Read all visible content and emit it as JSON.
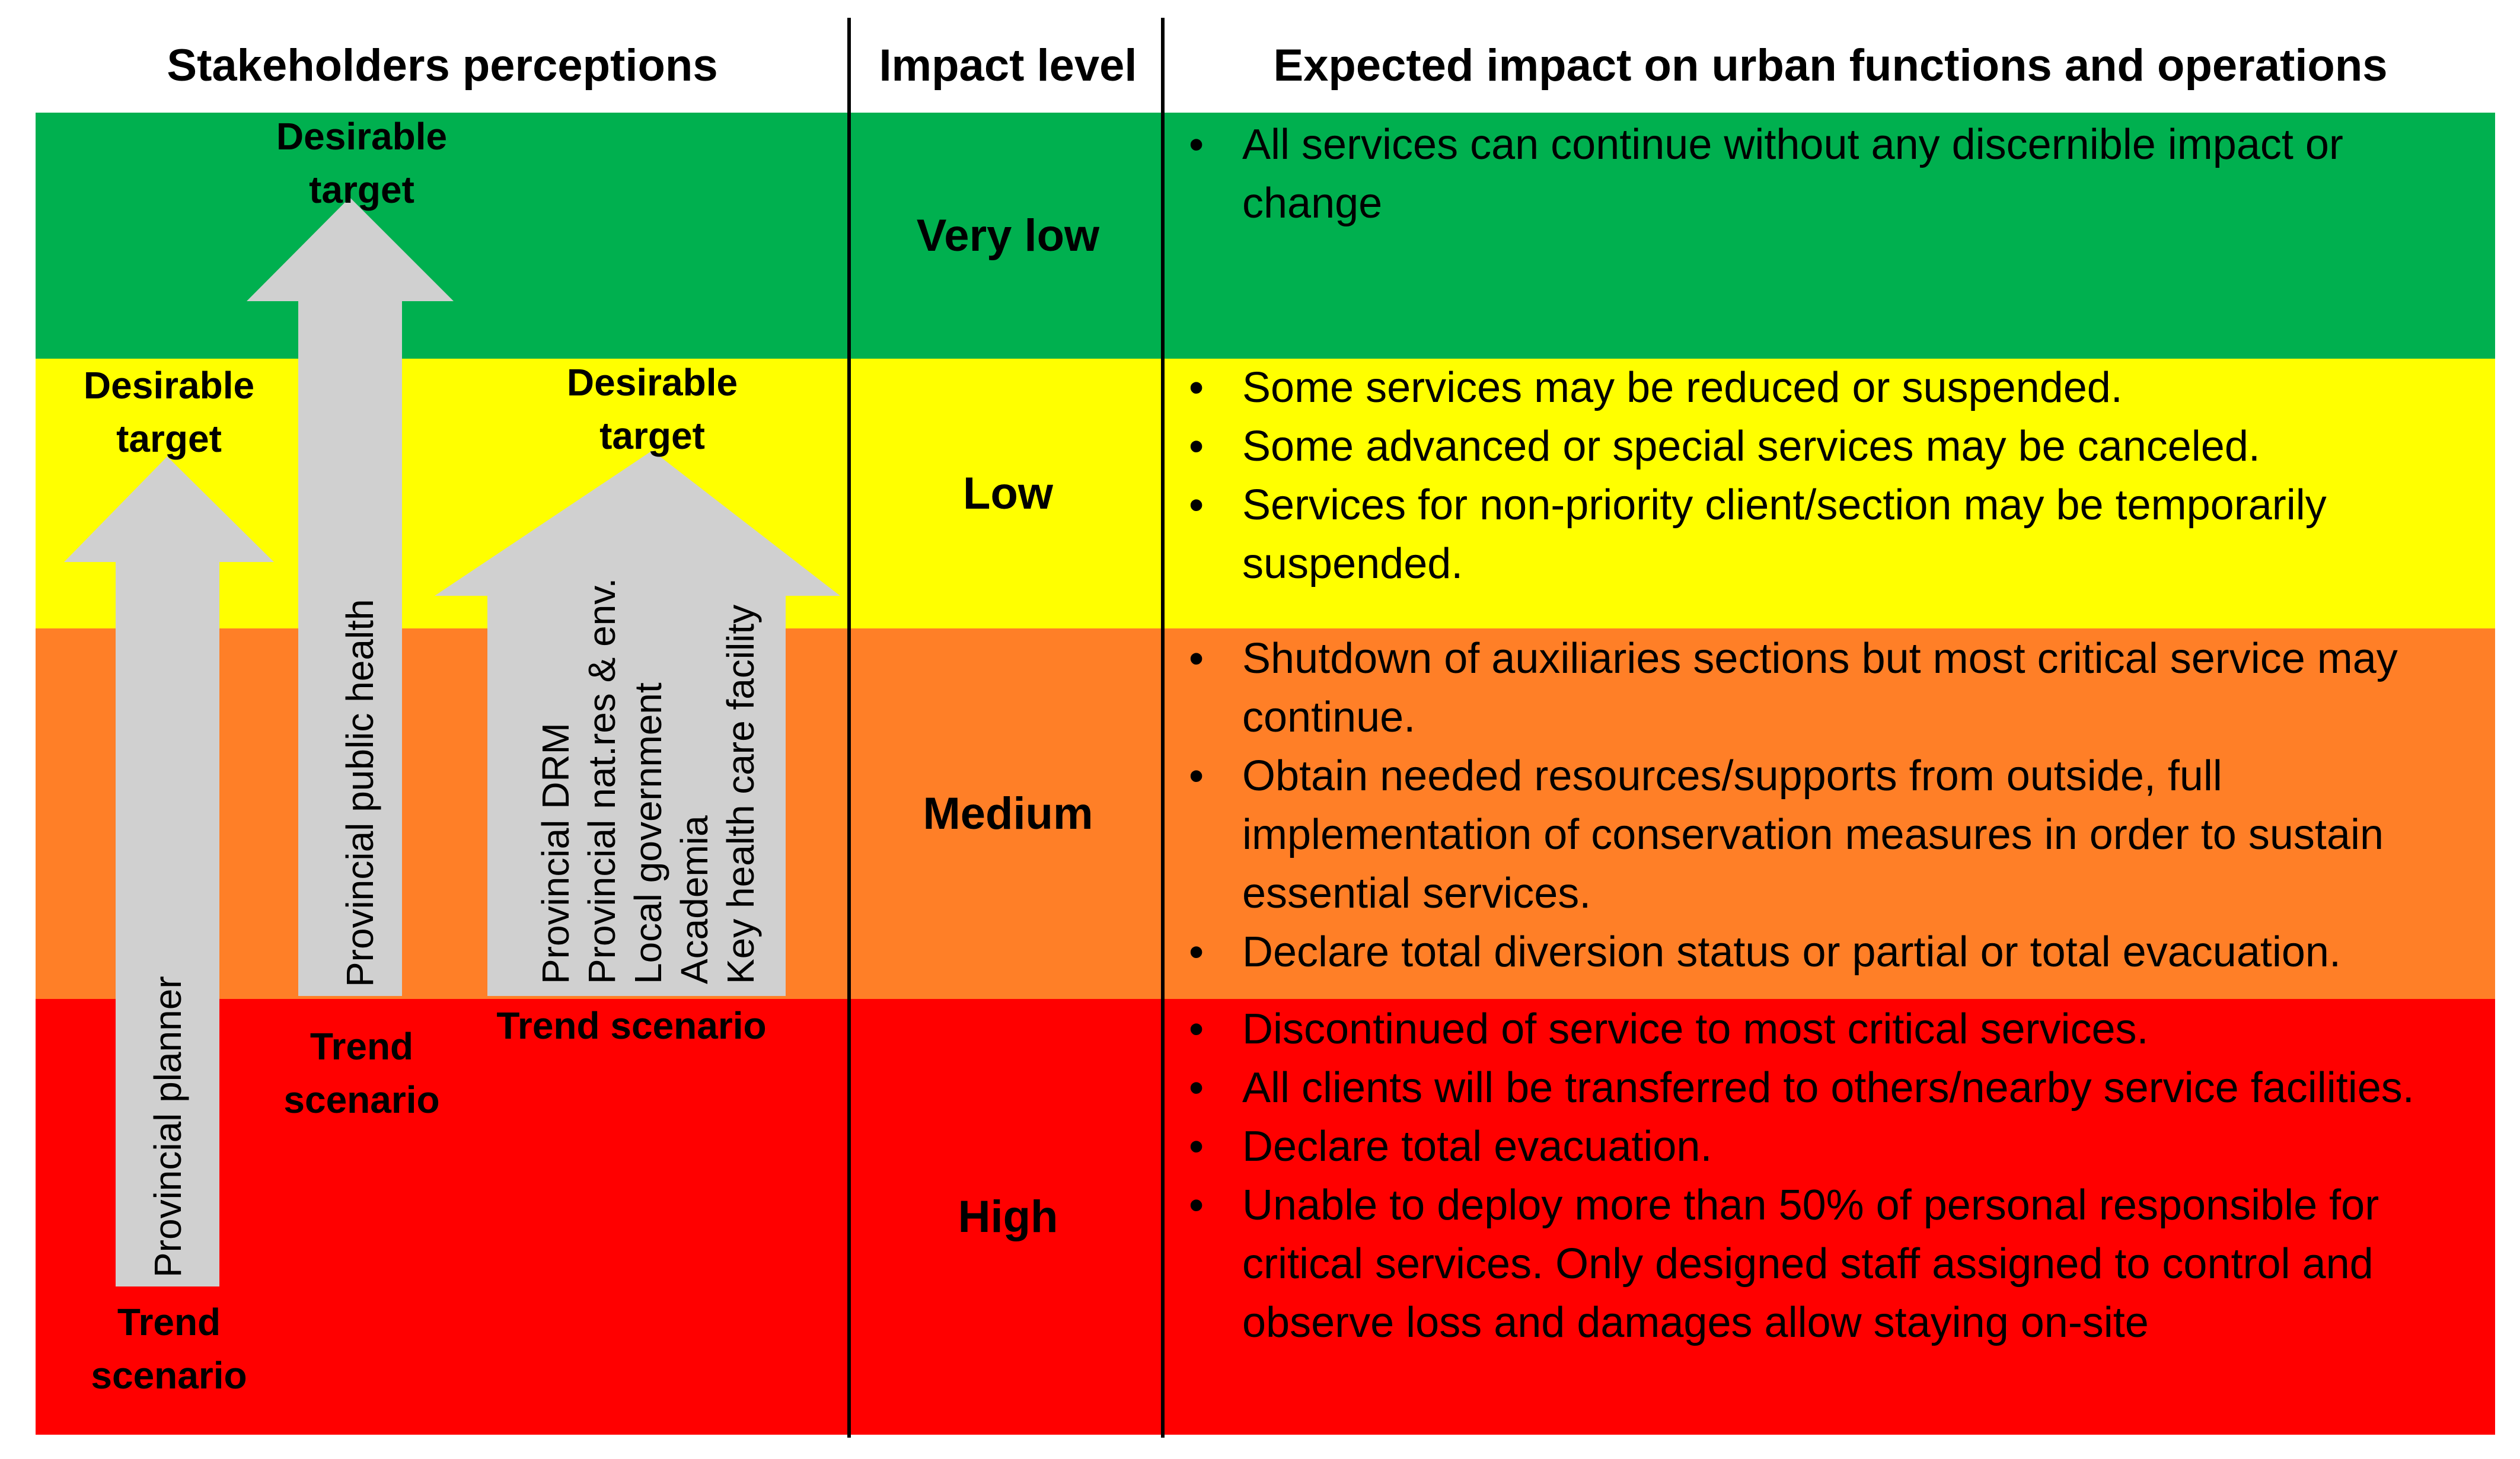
{
  "headers": {
    "stakeholders": "Stakeholders perceptions",
    "impact_level": "Impact level",
    "expected_impact": "Expected impact on urban functions and operations"
  },
  "colors": {
    "very_low": "#00b04f",
    "low": "#ffff00",
    "medium": "#ff7f27",
    "high": "#ff0000",
    "arrow_fill": "#d0d0d0"
  },
  "rows": [
    {
      "level": "Very low",
      "impacts": [
        "All services can continue without any discernible impact or change"
      ]
    },
    {
      "level": "Low",
      "impacts": [
        "Some services may be reduced or suspended.",
        "Some advanced or special services may be canceled.",
        "Services for non-priority client/section may be temporarily suspended."
      ]
    },
    {
      "level": "Medium",
      "impacts": [
        "Shutdown of auxiliaries sections but most critical service may continue.",
        "Obtain needed resources/supports from outside, full implementation of conservation measures in order to sustain essential services.",
        "Declare total diversion status or partial or total evacuation."
      ]
    },
    {
      "level": "High",
      "impacts": [
        "Discontinued of service to most critical services.",
        "All clients will be transferred to others/nearby service facilities.",
        "Declare total evacuation.",
        "Unable to deploy more than 50% of personal responsible for critical services. Only designed staff assigned to control and observe loss and damages allow staying on-site"
      ]
    }
  ],
  "arrows": [
    {
      "stakeholders": [
        "Provincial planner"
      ],
      "target_line1": "Desirable",
      "target_line2": "target",
      "trend_line1": "Trend",
      "trend_line2": "scenario"
    },
    {
      "stakeholders": [
        "Provincial public health"
      ],
      "target_line1": "Desirable",
      "target_line2": "target",
      "trend_line1": "Trend",
      "trend_line2": "scenario"
    },
    {
      "stakeholders": [
        "Provincial DRM",
        "Provincial nat.res & env.",
        "Local government",
        "Academia",
        "Key health care facility"
      ],
      "target_line1": "Desirable",
      "target_line2": "target",
      "trend_line1": "Trend scenario",
      "trend_line2": ""
    }
  ]
}
